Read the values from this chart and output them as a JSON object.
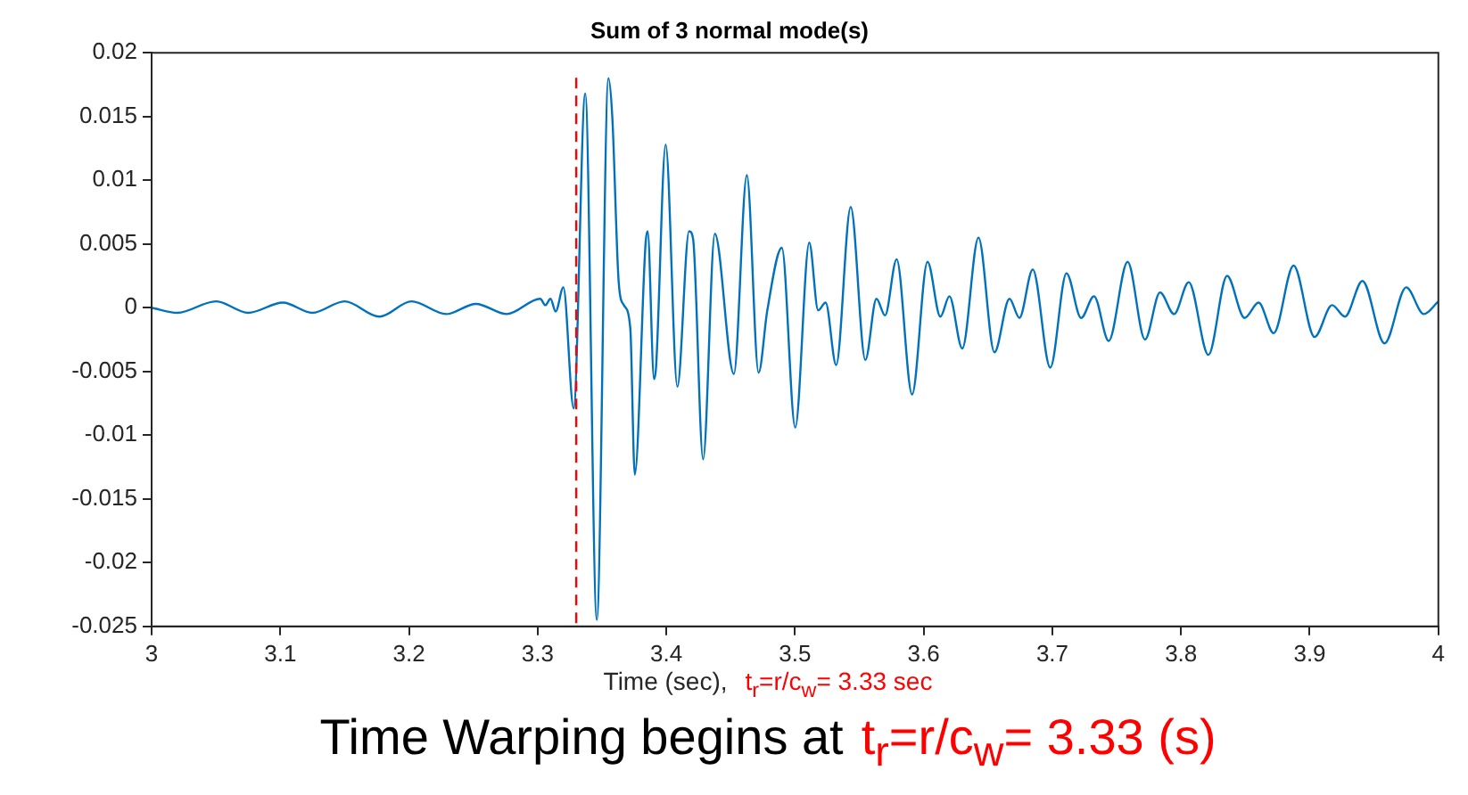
{
  "chart_data": {
    "type": "line",
    "title": "Sum of 3 normal mode(s)",
    "xlabel": "Time (sec),",
    "annotations": [
      "Time Warping begins at",
      "t$_{r}$=r/c$_{w}$= 3.33 (s)"
    ],
    "ref_lines": [
      {
        "axis": "x",
        "value": 3.33,
        "label": "t$_{r}$=r/c$_{w}$= 3.33 sec",
        "color": "#ff0000",
        "line_style": "dashed"
      }
    ],
    "xlim": [
      3,
      4
    ],
    "xticks": [
      3,
      3.1,
      3.2,
      3.3,
      3.4,
      3.5,
      3.6,
      3.7,
      3.8,
      3.9,
      4
    ],
    "ylim": [
      -0.025,
      0.02
    ],
    "yticks": [
      -0.025,
      -0.02,
      -0.015,
      -0.01,
      -0.005,
      0,
      0.005,
      0.01,
      0.015,
      0.02
    ],
    "marker": "none",
    "line_style": "solid",
    "series": [
      {
        "color": "#0072bd",
        "x": [
          3,
          3.02,
          3.05,
          3.075,
          3.102,
          3.125,
          3.15,
          3.177,
          3.202,
          3.229,
          3.252,
          3.276,
          3.302,
          3.306,
          3.31,
          3.314,
          3.32,
          3.328,
          3.337,
          3.346,
          3.355,
          3.358,
          3.363,
          3.367,
          3.372,
          3.3755,
          3.384,
          3.3855,
          3.3905,
          3.392,
          3.3995,
          3.4086,
          3.4177,
          3.4208,
          3.4286,
          3.4377,
          3.4525,
          3.4626,
          3.4717,
          3.4785,
          3.4898,
          3.5002,
          3.5111,
          3.518,
          3.5238,
          3.532,
          3.5433,
          3.5547,
          3.5633,
          3.57,
          3.579,
          3.591,
          3.603,
          3.613,
          3.62,
          3.63,
          3.6426,
          3.655,
          3.6667,
          3.6744,
          3.6848,
          3.6984,
          3.711,
          3.7224,
          3.7324,
          3.7438,
          3.7585,
          3.772,
          3.7837,
          3.7946,
          3.806,
          3.8213,
          3.8358,
          3.8494,
          3.8603,
          3.872,
          3.8875,
          3.9038,
          3.9174,
          3.9274,
          3.941,
          3.9582,
          3.975,
          3.9887,
          4
        ],
        "values": [
          0,
          -0.0004,
          0.0005,
          -0.0004,
          0.0004,
          -0.0004,
          0.0005,
          -0.0007,
          0.0005,
          -0.0005,
          0.0003,
          -0.0005,
          0.0007,
          0.0002,
          0.0007,
          -0.0003,
          0.0016,
          -0.0079,
          0.0168,
          -0.0245,
          0.018,
          0.015,
          0.002,
          0.0002,
          -0.0016,
          -0.0131,
          0.0052,
          0.006,
          -0.0056,
          -0.0047,
          0.0128,
          -0.0062,
          0.006,
          0.0054,
          -0.0119,
          0.0058,
          -0.0052,
          0.0104,
          -0.0051,
          -0.0002,
          0.0047,
          -0.0094,
          0.0051,
          -0.0002,
          0.0004,
          -0.0045,
          0.0079,
          -0.0041,
          0.0007,
          -0.0006,
          0.0038,
          -0.0068,
          0.0036,
          -0.0007,
          0.0009,
          -0.0032,
          0.0055,
          -0.0035,
          0.0007,
          -0.0008,
          0.003,
          -0.0047,
          0.0027,
          -0.0008,
          0.0009,
          -0.0026,
          0.0036,
          -0.0025,
          0.0012,
          -0.0005,
          0.002,
          -0.0037,
          0.0025,
          -0.0008,
          0.0004,
          -0.002,
          0.0033,
          -0.0023,
          0.0002,
          -0.0007,
          0.0021,
          -0.0028,
          0.0016,
          -0.0005,
          0.0005
        ]
      }
    ]
  }
}
